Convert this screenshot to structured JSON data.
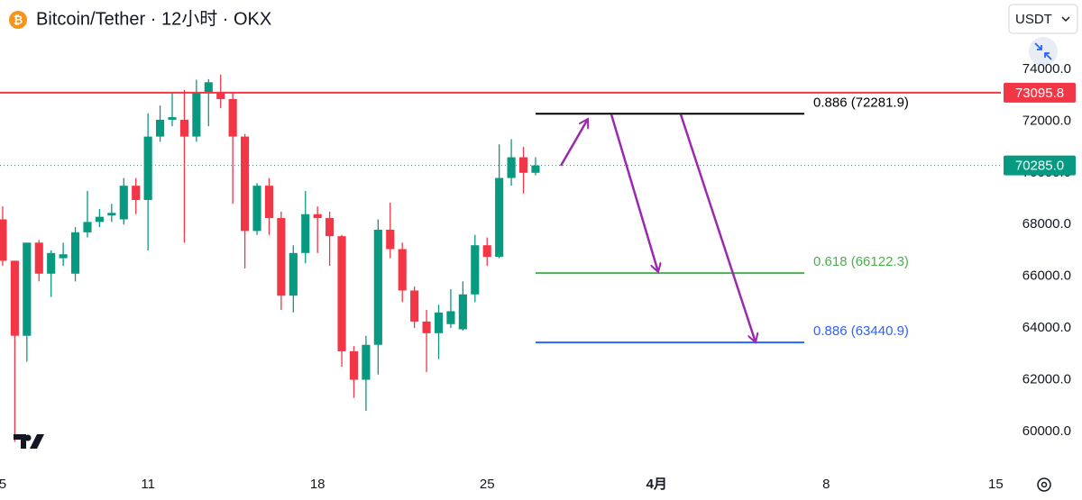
{
  "header": {
    "title": "Bitcoin/Tether · 12小时 · OKX",
    "currency": "USDT"
  },
  "chart_data": {
    "type": "candlestick",
    "x": [
      5,
      5.5,
      6,
      6.5,
      7,
      7.5,
      8,
      8.5,
      9,
      9.5,
      10,
      10.5,
      11,
      11.5,
      12,
      12.5,
      13,
      13.5,
      14,
      14.5,
      15,
      15.5,
      16,
      16.5,
      17,
      17.5,
      18,
      18.5,
      19,
      19.5,
      20,
      20.5,
      21,
      21.5,
      22,
      22.5,
      23,
      23.5,
      24,
      24.5,
      25,
      25.5,
      26,
      26.5,
      27
    ],
    "open": [
      68200,
      66600,
      63700,
      67300,
      66100,
      66700,
      66100,
      67700,
      68100,
      68350,
      68200,
      69500,
      68950,
      71400,
      72050,
      72050,
      71400,
      73100,
      73100,
      72850,
      71400,
      67750,
      69500,
      68250,
      65250,
      66900,
      68400,
      68250,
      67550,
      63100,
      62000,
      63350,
      67800,
      67050,
      65450,
      64250,
      63800,
      64150,
      63950,
      65300,
      67200,
      66750,
      69800,
      70600,
      70000
    ],
    "high": [
      68700,
      66600,
      67300,
      67400,
      67000,
      67300,
      67900,
      69300,
      68600,
      68800,
      69800,
      69800,
      72300,
      72600,
      73100,
      73200,
      73600,
      73620,
      73800,
      73100,
      71500,
      69600,
      69800,
      68500,
      67200,
      69300,
      68700,
      68500,
      67600,
      63300,
      63700,
      68200,
      68850,
      67300,
      65600,
      64700,
      64900,
      65500,
      65800,
      67600,
      67500,
      71100,
      71300,
      71000,
      70600
    ],
    "low": [
      66400,
      59600,
      62700,
      65800,
      65200,
      66400,
      65800,
      67500,
      67900,
      68100,
      68000,
      68400,
      67000,
      71200,
      71800,
      67300,
      71200,
      71800,
      72500,
      68800,
      66300,
      67600,
      67600,
      64700,
      64600,
      66500,
      66900,
      66400,
      62500,
      61300,
      60800,
      62200,
      66700,
      65000,
      64000,
      62300,
      62800,
      64000,
      63900,
      65000,
      66400,
      66700,
      69500,
      69200,
      69900
    ],
    "close": [
      66600,
      63700,
      67300,
      66100,
      66900,
      66850,
      67700,
      68100,
      68300,
      68450,
      69500,
      68950,
      71400,
      72050,
      72150,
      71400,
      73100,
      73500,
      72850,
      71400,
      67750,
      69500,
      68250,
      65250,
      66900,
      68400,
      68250,
      67550,
      63100,
      62000,
      63350,
      67800,
      67050,
      65450,
      64250,
      63800,
      64600,
      64650,
      65300,
      67200,
      66750,
      69800,
      70600,
      70000,
      70285
    ],
    "up_color": "#089981",
    "down_color": "#f23645",
    "xlim": [
      4.89,
      46.21
    ],
    "xticks": [
      5,
      11,
      18,
      25,
      {
        "value": 32,
        "label": "4月"
      },
      {
        "value": 39,
        "label": "8"
      },
      {
        "value": 46,
        "label": "15"
      }
    ],
    "ylim": [
      58570,
      76680
    ],
    "yticks": [
      {
        "value": 60000,
        "label": "60000.0"
      },
      {
        "value": 62000,
        "label": "62000.0"
      },
      {
        "value": 64000,
        "label": "64000.0"
      },
      {
        "value": 66000,
        "label": "66000.0"
      },
      {
        "value": 68000,
        "label": "68000.0"
      },
      {
        "value": 70000,
        "label": "70000.0"
      },
      {
        "value": 72000,
        "label": "72000.0"
      },
      {
        "value": 74000,
        "label": "74000.0"
      }
    ],
    "price_lines": [
      {
        "value": 73095.8,
        "color": "#f23645"
      },
      {
        "value": 70285,
        "label": "70285.0",
        "color": "#089981"
      }
    ],
    "fib_levels": [
      {
        "value": 72281.9,
        "label": "0.886 (72281.9)",
        "color": "#000000"
      },
      {
        "value": 66122.3,
        "label": "0.618 (66122.3)",
        "color": "#4caf50"
      },
      {
        "value": 63440.9,
        "label": "0.886 (63440.9)",
        "color": "#2962ff"
      }
    ]
  }
}
